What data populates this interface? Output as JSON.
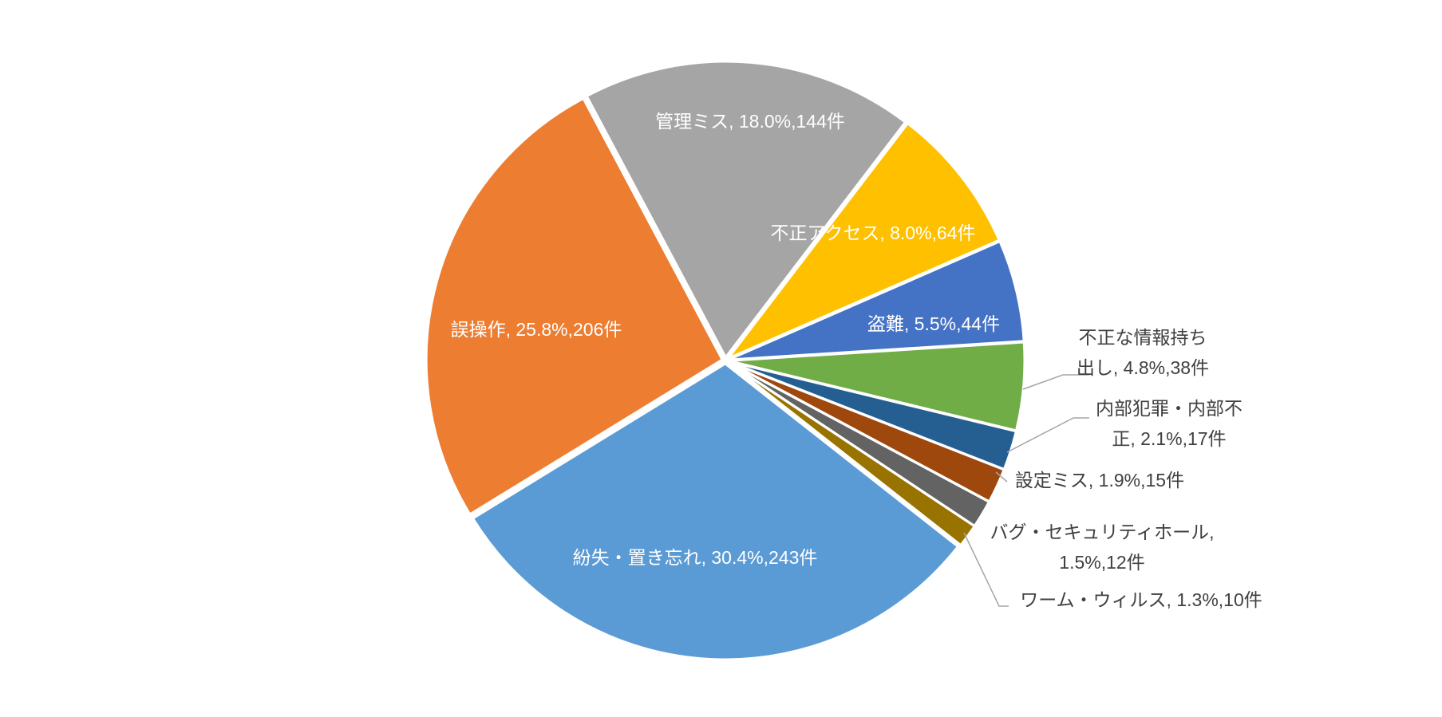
{
  "chart_data": {
    "type": "pie",
    "categories": [
      "管理ミス",
      "不正アクセス",
      "盗難",
      "不正な情報持ち出し",
      "内部犯罪・内部不正",
      "設定ミス",
      "バグ・セキュリティホール",
      "ワーム・ウィルス",
      "紛失・置き忘れ",
      "誤操作"
    ],
    "values": [
      144,
      64,
      44,
      38,
      17,
      15,
      12,
      10,
      243,
      206
    ],
    "value_labels": [
      [
        "管理ミス, 18.0%,144件"
      ],
      [
        "不正アクセス, 8.0%,64件"
      ],
      [
        "盗難, 5.5%,44件"
      ],
      [
        "不正な情報持ち",
        "出し, 4.8%,38件"
      ],
      [
        "内部犯罪・内部不",
        "正, 2.1%,17件"
      ],
      [
        "設定ミス, 1.9%,15件"
      ],
      [
        "バグ・セキュリティホール,",
        "1.5%,12件"
      ],
      [
        "ワーム・ウィルス, 1.3%,10件"
      ],
      [
        "紛失・置き忘れ, 30.4%,243件"
      ],
      [
        "誤操作, 25.8%,206件"
      ]
    ],
    "colors": [
      "#a5a5a5",
      "#ffc000",
      "#4472c4",
      "#70ad47",
      "#255e91",
      "#9e480e",
      "#636363",
      "#997300",
      "#5b9bd5",
      "#ed7d31"
    ]
  }
}
